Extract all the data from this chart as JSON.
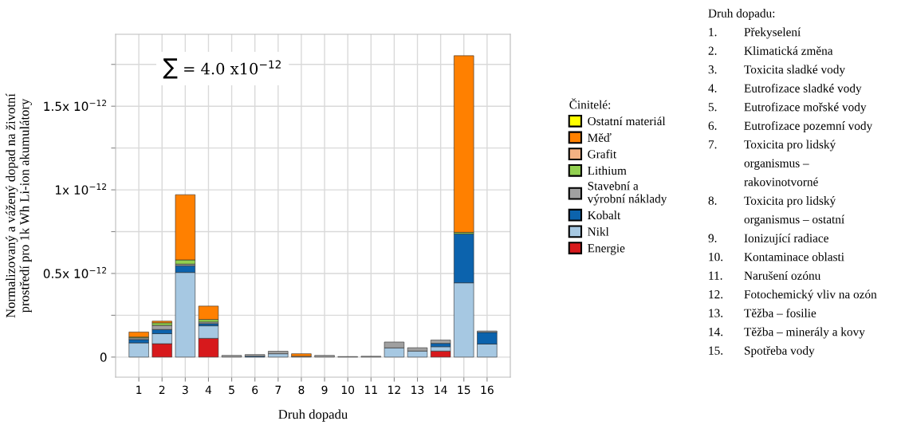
{
  "chart_data": {
    "type": "bar",
    "stacked": true,
    "categories": [
      "1",
      "2",
      "3",
      "4",
      "5",
      "6",
      "7",
      "8",
      "9",
      "10",
      "11",
      "12",
      "13",
      "14",
      "15",
      "16"
    ],
    "series": [
      {
        "name": "Energie",
        "color": "#d7191c",
        "values": [
          null,
          8e-14,
          null,
          1.12e-13,
          null,
          null,
          null,
          null,
          null,
          null,
          null,
          null,
          null,
          3.6e-14,
          null,
          null
        ]
      },
      {
        "name": "Nikl",
        "color": "#a6c8e2",
        "values": [
          8.5e-14,
          6e-14,
          5.06e-13,
          7.5e-14,
          null,
          null,
          2e-14,
          null,
          null,
          null,
          null,
          5.5e-14,
          3.6e-14,
          2.6e-14,
          4.44e-13,
          7.8e-14
        ]
      },
      {
        "name": "Kobalt",
        "color": "#0c63ad",
        "values": [
          2e-14,
          2.5e-14,
          4e-14,
          1.3e-14,
          null,
          5e-15,
          null,
          null,
          null,
          null,
          null,
          null,
          null,
          2e-14,
          2.93e-13,
          7e-14
        ]
      },
      {
        "name": "Stavební a\nvýrobní náklady",
        "color": "#a0a0a0",
        "values": [
          1e-14,
          2.5e-14,
          1e-14,
          1e-14,
          1e-14,
          1e-14,
          1.5e-14,
          5e-15,
          1e-14,
          3e-15,
          5e-15,
          3.5e-14,
          2e-14,
          2e-14,
          null,
          8e-15
        ]
      },
      {
        "name": "Lithium",
        "color": "#92d050",
        "values": [
          5e-15,
          1.5e-14,
          2.5e-14,
          1.5e-14,
          null,
          null,
          null,
          null,
          null,
          null,
          null,
          null,
          null,
          null,
          9e-15,
          null
        ]
      },
      {
        "name": "Grafit",
        "color": "#f4b183",
        "values": [
          null,
          null,
          null,
          null,
          null,
          null,
          null,
          null,
          null,
          null,
          null,
          null,
          null,
          null,
          null,
          null
        ]
      },
      {
        "name": "Měď",
        "color": "#ff8000",
        "values": [
          3e-14,
          1e-14,
          3.9e-13,
          8e-14,
          null,
          null,
          null,
          1.5e-14,
          null,
          null,
          null,
          null,
          null,
          null,
          1.056e-12,
          null
        ]
      },
      {
        "name": "Ostatní materiál",
        "color": "#ffff00",
        "values": [
          null,
          null,
          null,
          null,
          null,
          null,
          null,
          null,
          null,
          null,
          null,
          null,
          null,
          null,
          null,
          null
        ]
      }
    ],
    "legend_title": "Činitelé:",
    "legend": "right",
    "ylabel": "Normalizovaný a vážený dopad na životní\nprostředí pro 1k Wh Li-ion akumulátory",
    "xlabel": "Druh dopadu",
    "ylim": [
      -1.2e-13,
      1.93e-12
    ],
    "yticks": [
      0,
      {
        "value": 2.5e-13,
        "label": null
      },
      {
        "value": 5e-13,
        "label": "0.5x 10$^{−12}$"
      },
      {
        "value": 7.5e-13,
        "label": null
      },
      {
        "value": 1e-12,
        "label": "1x 10$^{−12}$"
      },
      {
        "value": 1.25e-12,
        "label": null
      },
      {
        "value": 1.5e-12,
        "label": "1.5x 10$^{−12}$"
      },
      {
        "value": 1.75e-12,
        "label": null
      }
    ],
    "grid": true,
    "annotations": [
      "∑ = 4.0 x10$^{−12}$",
      "Druh dopadu:",
      "1.\tPřekyselení",
      "2.\tKlimatická změna",
      "3.\tToxicita sladké vody",
      "4.\tEutrofizace sladké vody",
      "5.\tEutrofizace mořské vody",
      "6.\tEutrofizace pozemní vody",
      "7.\tToxicita pro lidský\n\torganismus –\n\trakovinotvorné",
      "8.\tToxicita pro lidský\n\torganismus – ostatní",
      "9.\tIonizující radiace",
      "10.\tKontaminace oblasti",
      "11.\tNarušení ozónu",
      "12.\tFotochemický vliv na ozón",
      "13.\tTěžba – fosilie",
      "14.\tTěžba – minerály a kovy",
      "15.\tSpotřeba vody"
    ]
  }
}
